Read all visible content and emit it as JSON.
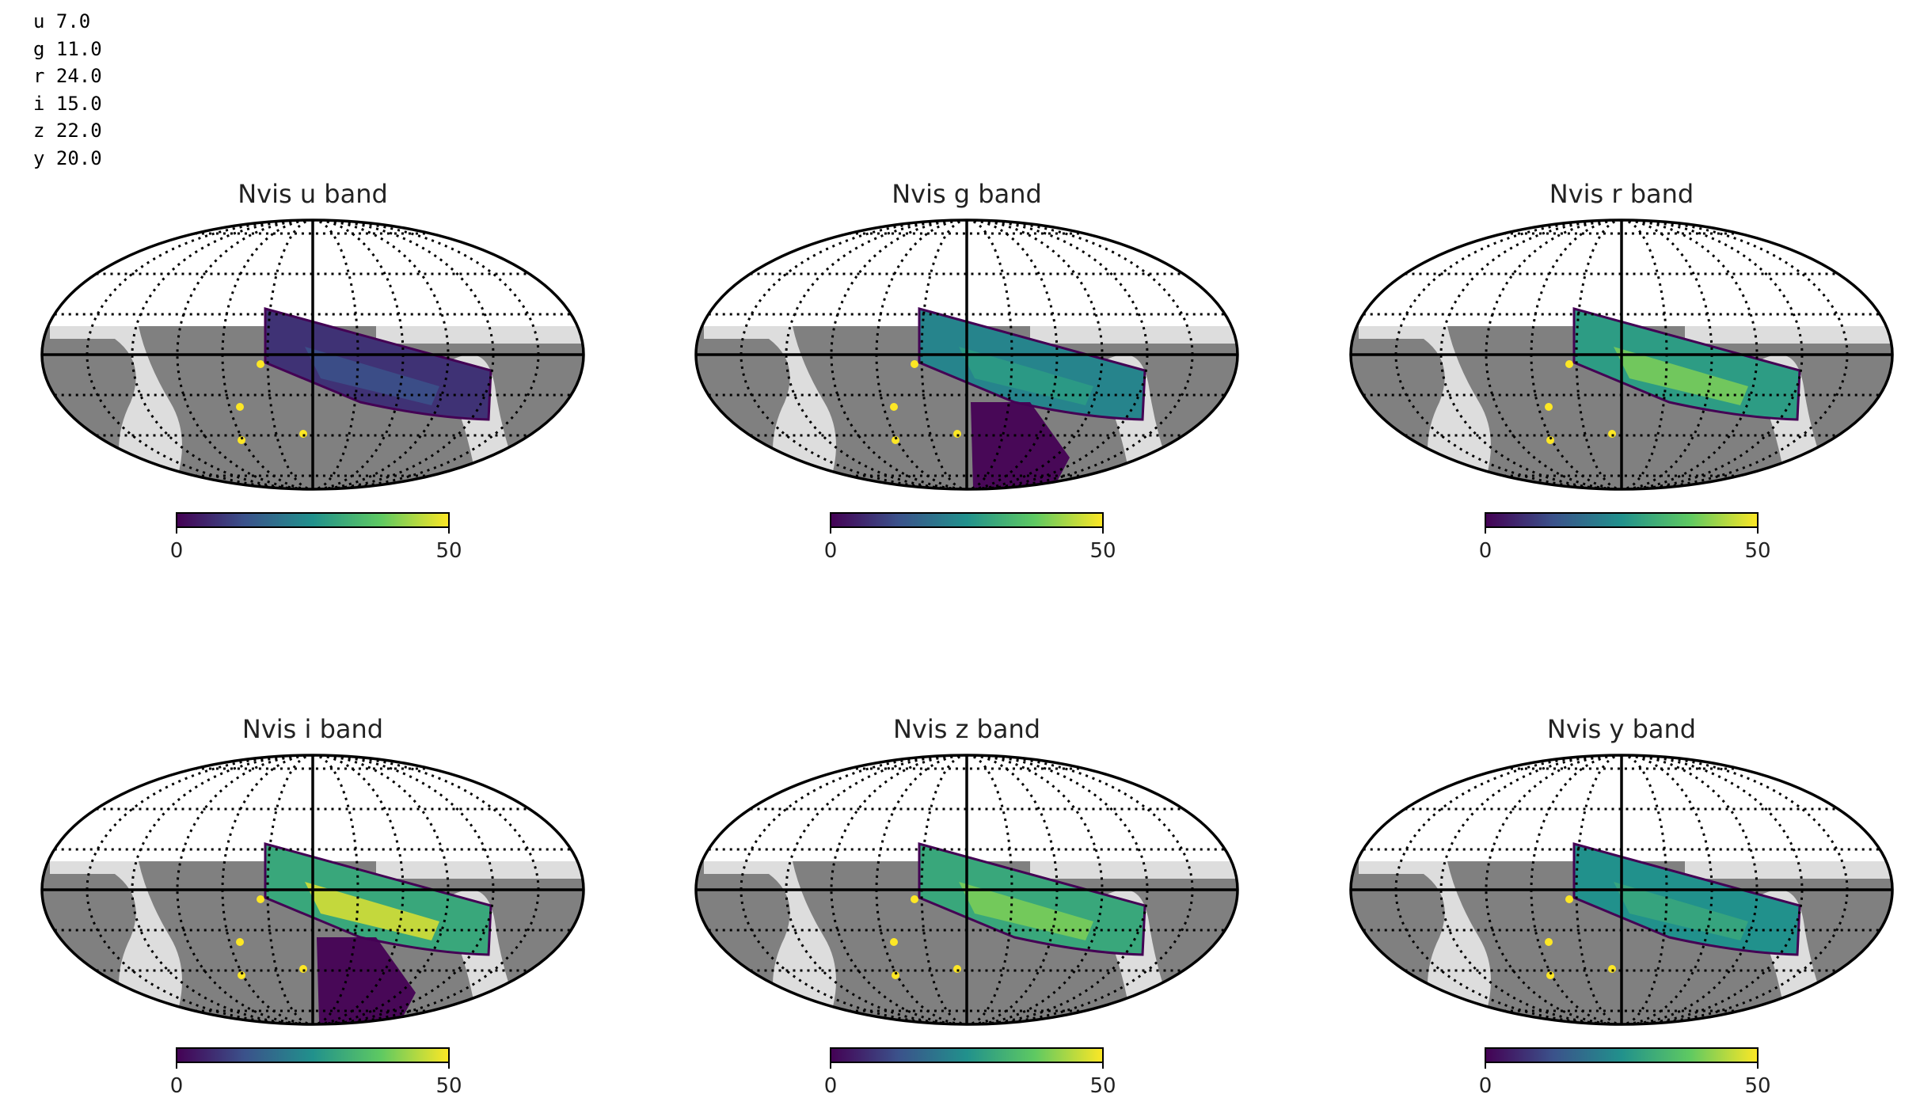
{
  "stdout_lines": [
    {
      "band": "u",
      "value": "7.0"
    },
    {
      "band": "g",
      "value": "11.0"
    },
    {
      "band": "r",
      "value": "24.0"
    },
    {
      "band": "i",
      "value": "15.0"
    },
    {
      "band": "z",
      "value": "22.0"
    },
    {
      "band": "y",
      "value": "20.0"
    }
  ],
  "panels": [
    {
      "title": "Nvis u band",
      "band": "u",
      "stripe_level": 0.15,
      "hotspot": 0.25,
      "south_blob": 0
    },
    {
      "title": "Nvis g band",
      "band": "g",
      "stripe_level": 0.45,
      "hotspot": 0.55,
      "south_blob": 0.5
    },
    {
      "title": "Nvis r band",
      "band": "r",
      "stripe_level": 0.55,
      "hotspot": 0.8,
      "south_blob": 0
    },
    {
      "title": "Nvis i band",
      "band": "i",
      "stripe_level": 0.6,
      "hotspot": 0.95,
      "south_blob": 1
    },
    {
      "title": "Nvis z band",
      "band": "z",
      "stripe_level": 0.6,
      "hotspot": 0.8,
      "south_blob": 0
    },
    {
      "title": "Nvis y band",
      "band": "y",
      "stripe_level": 0.5,
      "hotspot": 0.6,
      "south_blob": 0
    }
  ],
  "colorbar": {
    "min_label": "0",
    "max_label": "50",
    "colormap": [
      "#440154",
      "#3b528b",
      "#21918c",
      "#5ec962",
      "#fde725"
    ]
  },
  "colors": {
    "footprint_dark": "#808080",
    "footprint_light": "#dddddd",
    "background": "#ffffff",
    "graticule": "#000000",
    "highlight": "#fde725"
  }
}
